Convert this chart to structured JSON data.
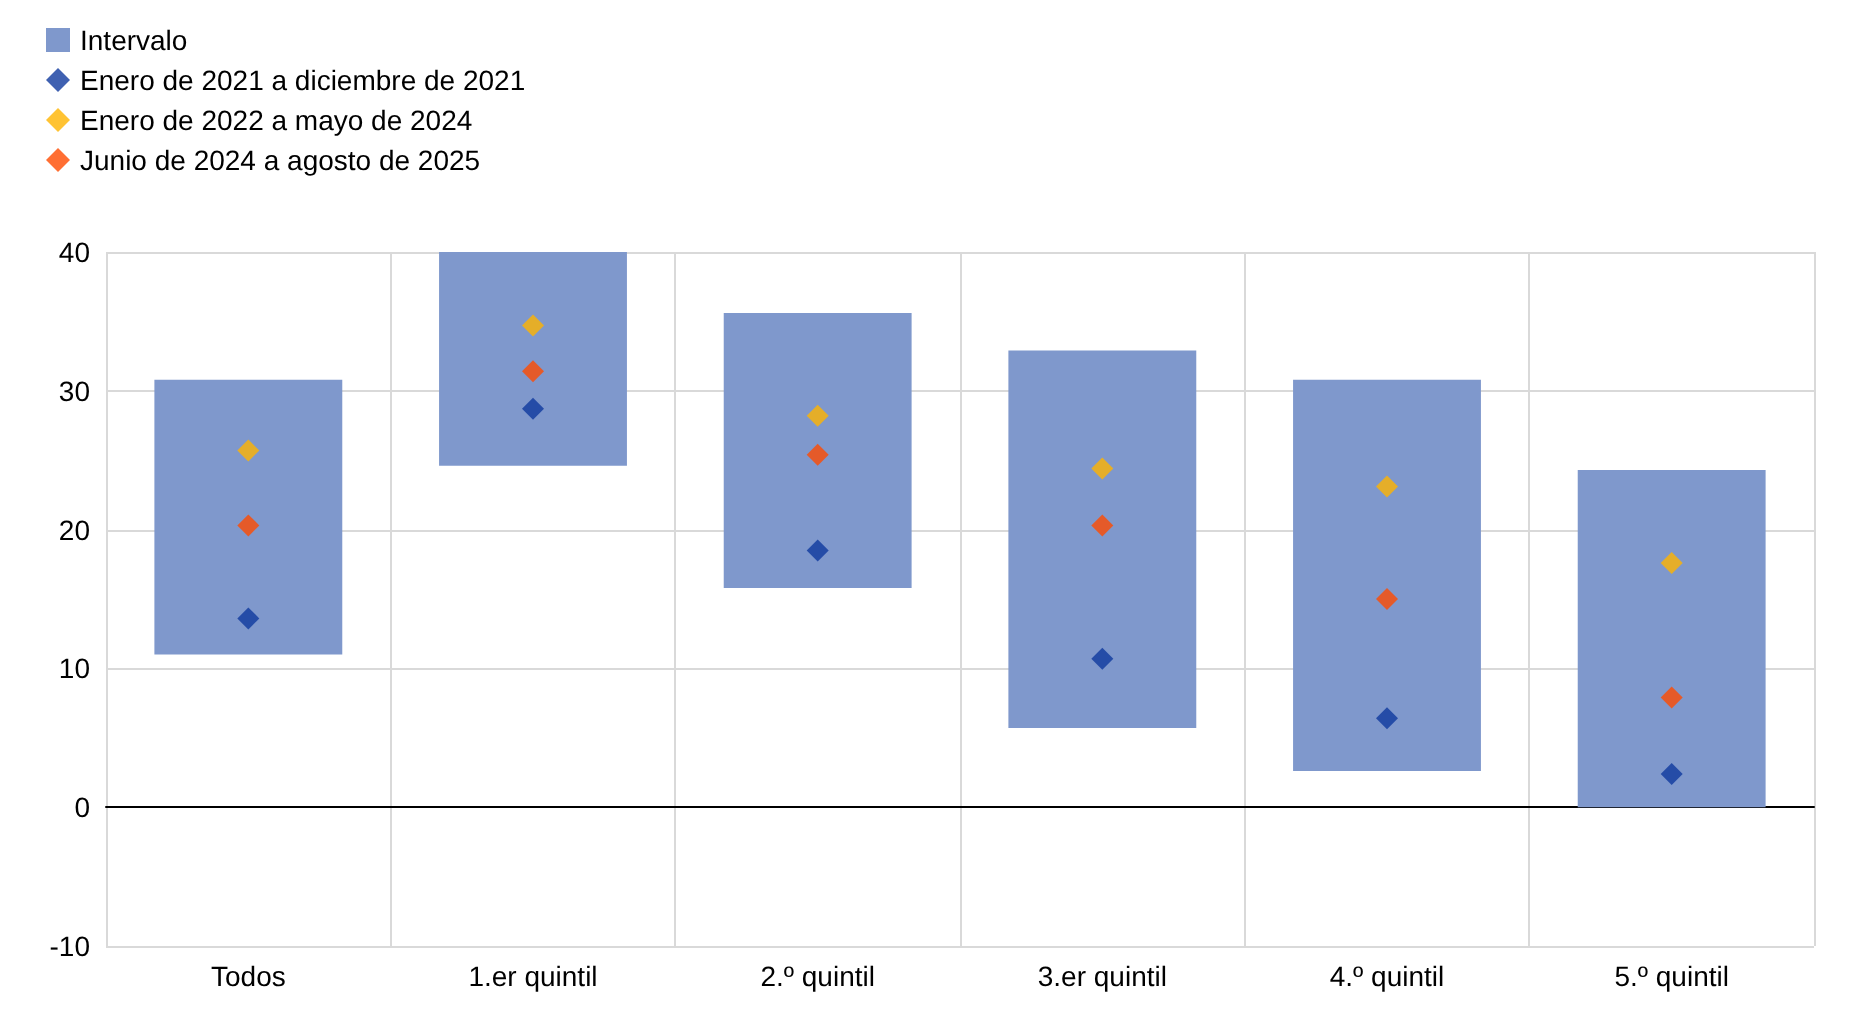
{
  "chart_data": {
    "type": "bar",
    "categories": [
      "Todos",
      "1.er quintil",
      "2.º quintil",
      "3.er quintil",
      "4.º quintil",
      "5.º quintil"
    ],
    "series": [
      {
        "name": "Intervalo",
        "color": "#7f98cc",
        "values": [
          19.8,
          15.4,
          19.8,
          27.2,
          28.2,
          24.3
        ],
        "base": [
          11.0,
          24.6,
          15.8,
          5.7,
          2.6,
          0
        ]
      },
      {
        "name": "Enero de 2021 a diciembre de 2021",
        "type": "scatter",
        "color": "#0f3a9e",
        "values": [
          13.6,
          28.7,
          18.5,
          10.7,
          6.4,
          2.4
        ]
      },
      {
        "name": "Enero de 2022 a mayo de 2024",
        "type": "scatter",
        "color": "#ffb400",
        "values": [
          25.7,
          34.7,
          28.2,
          24.4,
          23.1,
          17.6
        ]
      },
      {
        "name": "Junio de 2024 a agosto de 2025",
        "type": "scatter",
        "color": "#ff4b00",
        "values": [
          20.3,
          31.4,
          25.4,
          20.3,
          15.0,
          7.9
        ]
      }
    ],
    "ylim": [
      -10,
      40
    ],
    "yticks": [
      -10,
      0,
      10,
      20,
      30,
      40
    ],
    "grid": true,
    "legend": "top left",
    "marker": "diamond"
  }
}
